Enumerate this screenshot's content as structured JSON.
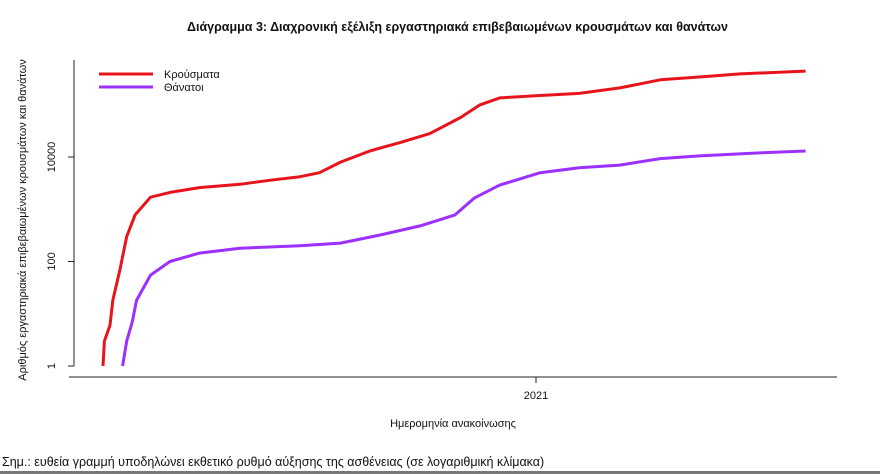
{
  "chart_data": {
    "type": "line",
    "title": "Διάγραμμα 3: Διαχρονική εξέλιξη εργαστηριακά επιβεβαιωμένων κρουσμάτων και θανάτων",
    "xlabel": "Ημερομηνία ανακοίνωσης",
    "ylabel": "Αριθμός εργαστηριακά επιβεβαιωμένων κρουσμάτων και θανάτων",
    "y_scale": "log",
    "ylim": [
      1,
      700000
    ],
    "xlim": [
      "2020-02-05",
      "2021-07-30"
    ],
    "y_ticks": [
      {
        "value": 1,
        "label": "1"
      },
      {
        "value": 100,
        "label": "100"
      },
      {
        "value": 10000,
        "label": "10000"
      }
    ],
    "x_ticks": [
      {
        "value": "2021-01-01",
        "label": "2021"
      }
    ],
    "grid": false,
    "legend_position": "top-left",
    "series": [
      {
        "name": "Κρούσματα",
        "color": "#e8141c",
        "points": [
          [
            "2020-02-26",
            1
          ],
          [
            "2020-02-27",
            3
          ],
          [
            "2020-03-02",
            6
          ],
          [
            "2020-03-04",
            18
          ],
          [
            "2020-03-09",
            68
          ],
          [
            "2020-03-14",
            300
          ],
          [
            "2020-03-20",
            780
          ],
          [
            "2020-03-31",
            1700
          ],
          [
            "2020-04-14",
            2100
          ],
          [
            "2020-05-05",
            2600
          ],
          [
            "2020-06-03",
            3000
          ],
          [
            "2020-06-25",
            3600
          ],
          [
            "2020-07-16",
            4200
          ],
          [
            "2020-07-30",
            5000
          ],
          [
            "2020-08-14",
            8000
          ],
          [
            "2020-09-04",
            13000
          ],
          [
            "2020-09-26",
            19000
          ],
          [
            "2020-10-17",
            28000
          ],
          [
            "2020-11-08",
            57000
          ],
          [
            "2020-11-22",
            100000
          ],
          [
            "2020-12-06",
            135000
          ],
          [
            "2021-01-04",
            150000
          ],
          [
            "2021-02-01",
            165000
          ],
          [
            "2021-03-02",
            210000
          ],
          [
            "2021-03-31",
            300000
          ],
          [
            "2021-04-28",
            340000
          ],
          [
            "2021-05-27",
            390000
          ],
          [
            "2021-07-13",
            440000
          ]
        ]
      },
      {
        "name": "Θάνατοι",
        "color": "#9b30ff",
        "points": [
          [
            "2020-03-11",
            1
          ],
          [
            "2020-03-14",
            3
          ],
          [
            "2020-03-18",
            7
          ],
          [
            "2020-03-21",
            18
          ],
          [
            "2020-03-31",
            55
          ],
          [
            "2020-04-14",
            100
          ],
          [
            "2020-05-05",
            145
          ],
          [
            "2020-06-03",
            180
          ],
          [
            "2020-07-16",
            200
          ],
          [
            "2020-08-14",
            225
          ],
          [
            "2020-09-11",
            320
          ],
          [
            "2020-10-10",
            480
          ],
          [
            "2020-11-04",
            780
          ],
          [
            "2020-11-18",
            1650
          ],
          [
            "2020-12-06",
            2900
          ],
          [
            "2021-01-04",
            5000
          ],
          [
            "2021-02-01",
            6200
          ],
          [
            "2021-03-02",
            7000
          ],
          [
            "2021-03-31",
            9300
          ],
          [
            "2021-04-28",
            10500
          ],
          [
            "2021-06-10",
            12000
          ],
          [
            "2021-07-13",
            13000
          ]
        ]
      }
    ]
  },
  "note": "Σημ.: ευθεία γραμμή υποδηλώνει εκθετικό ρυθμό αύξησης της ασθένειας (σε λογαριθμική κλίμακα)"
}
